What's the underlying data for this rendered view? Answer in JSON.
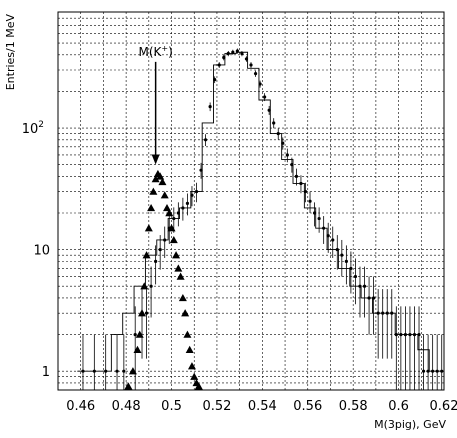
{
  "chart_data": {
    "type": "scatter",
    "xlabel": "M(3pig), GeV",
    "ylabel": "Entries/1 MeV",
    "xlim": [
      0.45,
      0.62
    ],
    "ylim": [
      0.7,
      900
    ],
    "yscale": "log",
    "grid": true,
    "x_ticks": [
      "0.46",
      "0.48",
      "0.5",
      "0.52",
      "0.54",
      "0.56",
      "0.58",
      "0.6",
      "0.62"
    ],
    "x_tick_values": [
      0.46,
      0.48,
      0.5,
      0.52,
      0.54,
      0.56,
      0.58,
      0.6,
      0.62
    ],
    "y_ticks": [
      {
        "value": 1,
        "label": "1",
        "sup": ""
      },
      {
        "value": 10,
        "label": "10",
        "sup": ""
      },
      {
        "value": 100,
        "label": "10",
        "sup": "2"
      }
    ],
    "annotation": {
      "text": "M(K",
      "sup": "+",
      "close": ")",
      "x": 0.493,
      "y_from": 350,
      "y_to": 52
    },
    "series": [
      {
        "style": "points",
        "x": [
          0.461,
          0.466,
          0.471,
          0.476,
          0.479,
          0.484,
          0.487,
          0.489,
          0.491,
          0.493,
          0.495,
          0.497,
          0.499,
          0.501,
          0.503,
          0.505,
          0.507,
          0.509,
          0.511,
          0.513,
          0.515,
          0.517,
          0.519,
          0.521,
          0.523,
          0.525,
          0.527,
          0.529,
          0.531,
          0.533,
          0.535,
          0.537,
          0.539,
          0.541,
          0.543,
          0.545,
          0.547,
          0.549,
          0.551,
          0.553,
          0.555,
          0.557,
          0.559,
          0.561,
          0.563,
          0.565,
          0.567,
          0.569,
          0.571,
          0.573,
          0.575,
          0.577,
          0.579,
          0.581,
          0.583,
          0.585,
          0.587,
          0.589,
          0.591,
          0.593,
          0.595,
          0.597,
          0.599,
          0.601,
          0.603,
          0.605,
          0.607,
          0.609,
          0.611,
          0.613,
          0.615,
          0.617,
          0.619
        ],
        "y": [
          1,
          1,
          1,
          1,
          1,
          2,
          3,
          3,
          5,
          8,
          10,
          12,
          15,
          18,
          20,
          22,
          24,
          28,
          30,
          45,
          80,
          150,
          250,
          330,
          380,
          410,
          420,
          430,
          410,
          370,
          330,
          280,
          230,
          180,
          140,
          110,
          90,
          75,
          60,
          50,
          40,
          35,
          30,
          25,
          20,
          18,
          15,
          13,
          12,
          10,
          9,
          8,
          7,
          6,
          5,
          5,
          4,
          4,
          3,
          3,
          3,
          3,
          2,
          2,
          2,
          2,
          2,
          2,
          1,
          1,
          1,
          1,
          1
        ]
      },
      {
        "style": "triangles",
        "x": [
          0.481,
          0.483,
          0.485,
          0.486,
          0.487,
          0.488,
          0.489,
          0.49,
          0.491,
          0.492,
          0.493,
          0.494,
          0.495,
          0.496,
          0.497,
          0.498,
          0.499,
          0.5,
          0.501,
          0.502,
          0.503,
          0.504,
          0.505,
          0.506,
          0.507,
          0.508,
          0.509,
          0.51,
          0.511,
          0.512
        ],
        "y": [
          0.75,
          1,
          1.5,
          2,
          3,
          5,
          9,
          15,
          22,
          30,
          38,
          42,
          40,
          36,
          28,
          22,
          20,
          15,
          12,
          9,
          7,
          6,
          4,
          3,
          2,
          1.5,
          1.1,
          0.9,
          0.8,
          0.75
        ]
      },
      {
        "style": "step",
        "x": [
          0.461,
          0.466,
          0.471,
          0.476,
          0.481,
          0.486,
          0.491,
          0.496,
          0.501,
          0.506,
          0.511,
          0.516,
          0.521,
          0.526,
          0.531,
          0.536,
          0.541,
          0.546,
          0.551,
          0.556,
          0.561,
          0.566,
          0.571,
          0.576,
          0.581,
          0.586,
          0.591,
          0.596,
          0.601,
          0.606,
          0.611,
          0.616
        ],
        "y": [
          1,
          1,
          1,
          2,
          3,
          5,
          9,
          12,
          18,
          22,
          30,
          110,
          330,
          410,
          420,
          310,
          170,
          90,
          55,
          35,
          22,
          15,
          10,
          7,
          5,
          4,
          3,
          3,
          2,
          2,
          1.5,
          1
        ]
      }
    ]
  }
}
